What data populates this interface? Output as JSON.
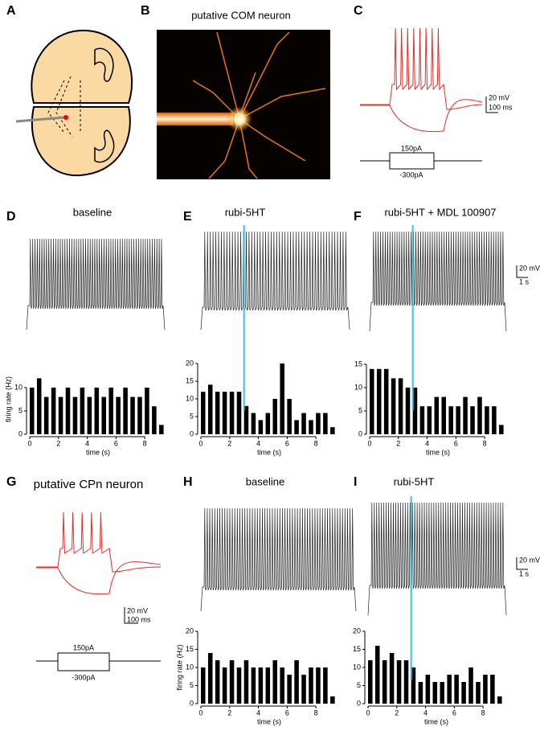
{
  "panel_labels": [
    "A",
    "B",
    "C",
    "D",
    "E",
    "F",
    "G",
    "H",
    "I"
  ],
  "B": {
    "title": "putative COM neuron"
  },
  "C": {
    "scale_bar": [
      "20 mV",
      "100 ms"
    ],
    "protocol": [
      "150pA",
      "-300pA"
    ]
  },
  "G": {
    "title": "putative CPn neuron",
    "scale_bar": [
      "20 mV",
      "100 ms"
    ],
    "protocol": [
      "150pA",
      "-300pA"
    ]
  },
  "trace_scale_bars": [
    [
      "20 mV",
      "1 s"
    ],
    [
      "20 mV",
      "1 s"
    ]
  ],
  "chart_data": [
    {
      "type": "histogram",
      "title": "baseline",
      "ylabel": "firing rate (Hz)",
      "xlabel": "time (s)",
      "color": "#000000",
      "bins": [
        0,
        0.5,
        1,
        1.5,
        2,
        2.5,
        3,
        3.5,
        4,
        4.5,
        5,
        5.5,
        6,
        6.5,
        7,
        7.5,
        8,
        8.5,
        9,
        9.5
      ],
      "values": [
        10,
        12,
        8,
        10,
        8,
        10,
        8,
        10,
        8,
        10,
        8,
        10,
        8,
        10,
        8,
        8,
        10,
        6,
        2
      ],
      "xlim": [
        0,
        9.5
      ],
      "xticks": [
        0,
        2,
        4,
        6,
        8
      ],
      "ylim": [
        0,
        15
      ],
      "yticks": [
        0,
        5,
        10
      ]
    },
    {
      "type": "histogram",
      "title": "rubi-5HT",
      "xlabel": "time (s)",
      "color": "#000000",
      "event_time": 3,
      "event_color": "#36c3e6",
      "bins": [
        0,
        0.5,
        1,
        1.5,
        2,
        2.5,
        3,
        3.5,
        4,
        4.5,
        5,
        5.5,
        6,
        6.5,
        7,
        7.5,
        8,
        8.5,
        9,
        9.5
      ],
      "values": [
        12,
        14,
        12,
        12,
        12,
        12,
        8,
        6,
        4,
        6,
        10,
        20,
        10,
        4,
        6,
        4,
        6,
        6,
        2
      ],
      "xlim": [
        0,
        9.5
      ],
      "xticks": [
        0,
        2,
        4,
        6,
        8
      ],
      "ylim": [
        0,
        20
      ],
      "yticks": [
        0,
        5,
        10,
        15,
        20
      ]
    },
    {
      "type": "histogram",
      "title": "rubi-5HT + MDL 100907",
      "xlabel": "time (s)",
      "color": "#000000",
      "event_time": 3,
      "event_color": "#36c3e6",
      "bins": [
        0,
        0.5,
        1,
        1.5,
        2,
        2.5,
        3,
        3.5,
        4,
        4.5,
        5,
        5.5,
        6,
        6.5,
        7,
        7.5,
        8,
        8.5,
        9,
        9.5
      ],
      "values": [
        14,
        14,
        14,
        12,
        12,
        10,
        10,
        6,
        6,
        8,
        8,
        6,
        6,
        8,
        6,
        8,
        6,
        6,
        2
      ],
      "xlim": [
        0,
        9.5
      ],
      "xticks": [
        0,
        2,
        4,
        6,
        8
      ],
      "ylim": [
        0,
        15
      ],
      "yticks": [
        0,
        5,
        10,
        15
      ]
    },
    {
      "type": "histogram",
      "title": "baseline",
      "ylabel": "firing rate (Hz)",
      "xlabel": "time (s)",
      "color": "#000000",
      "bins": [
        0,
        0.5,
        1,
        1.5,
        2,
        2.5,
        3,
        3.5,
        4,
        4.5,
        5,
        5.5,
        6,
        6.5,
        7,
        7.5,
        8,
        8.5,
        9,
        9.5
      ],
      "values": [
        10,
        14,
        12,
        10,
        12,
        10,
        12,
        10,
        10,
        10,
        12,
        10,
        8,
        12,
        8,
        10,
        10,
        10,
        2
      ],
      "xlim": [
        0,
        9.5
      ],
      "xticks": [
        0,
        2,
        4,
        6,
        8
      ],
      "ylim": [
        0,
        20
      ],
      "yticks": [
        0,
        5,
        10,
        15,
        20
      ]
    },
    {
      "type": "histogram",
      "title": "rubi-5HT",
      "xlabel": "time (s)",
      "color": "#000000",
      "event_time": 3,
      "event_color": "#36c3e6",
      "bins": [
        0,
        0.5,
        1,
        1.5,
        2,
        2.5,
        3,
        3.5,
        4,
        4.5,
        5,
        5.5,
        6,
        6.5,
        7,
        7.5,
        8,
        8.5,
        9,
        9.5
      ],
      "values": [
        12,
        16,
        12,
        14,
        12,
        12,
        10,
        6,
        8,
        6,
        6,
        8,
        8,
        6,
        10,
        6,
        8,
        8,
        2
      ],
      "xlim": [
        0,
        9.5
      ],
      "xticks": [
        0,
        2,
        4,
        6,
        8
      ],
      "ylim": [
        0,
        20
      ],
      "yticks": [
        0,
        5,
        10,
        15,
        20
      ]
    }
  ]
}
